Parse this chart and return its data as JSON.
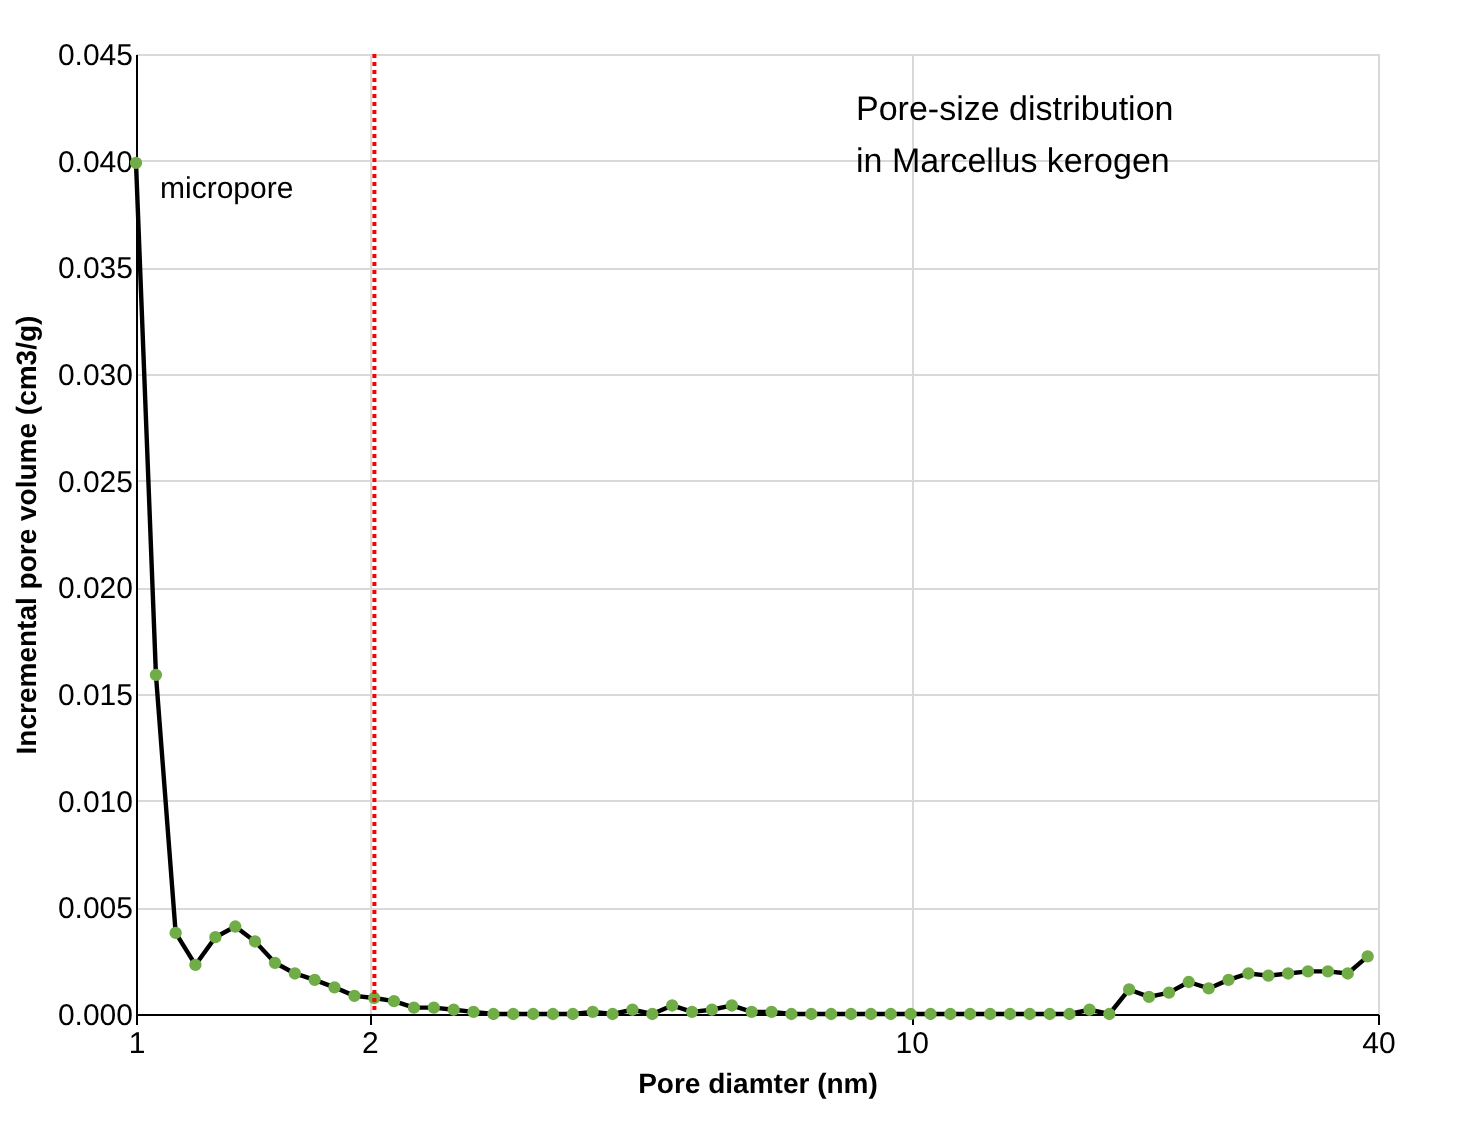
{
  "chart_data": {
    "type": "line",
    "xlabel": "Pore diamter (nm)",
    "ylabel": "Incremental pore volume (cm3/g)",
    "annotations": [
      "micropore",
      "Pore-size distribution\nin Marcellus kerogen"
    ],
    "log": "x",
    "x": [
      1.0,
      1.061,
      1.125,
      1.193,
      1.266,
      1.343,
      1.424,
      1.511,
      1.603,
      1.7,
      1.803,
      1.913,
      2.029,
      2.152,
      2.283,
      2.422,
      2.569,
      2.725,
      2.891,
      3.066,
      3.253,
      3.45,
      3.66,
      3.883,
      4.119,
      4.369,
      4.635,
      4.916,
      5.215,
      5.532,
      5.869,
      6.225,
      6.604,
      7.005,
      7.431,
      7.883,
      8.362,
      8.871,
      9.41,
      9.982,
      10.59,
      11.23,
      11.91,
      12.64,
      13.41,
      14.22,
      15.09,
      16.0,
      16.98,
      18.01,
      19.1,
      20.26,
      21.5,
      22.8,
      24.19,
      25.66,
      27.22,
      28.88,
      30.63,
      32.49,
      34.47,
      36.56,
      38.79
    ],
    "series": [
      {
        "color": "#000000",
        "values": [
          0.0399,
          0.0159,
          0.0038,
          0.0023,
          0.0036,
          0.0041,
          0.0034,
          0.0024,
          0.0019,
          0.0016,
          0.00125,
          0.00085,
          0.00075,
          0.0006,
          0.0003,
          0.0003,
          0.0002,
          0.0001,
          0,
          0,
          0,
          0,
          0,
          0.0001,
          0,
          0.0002,
          0,
          0.0004,
          0.0001,
          0.0002,
          0.0004,
          0.0001,
          0.0001,
          0,
          0,
          0,
          0,
          0,
          0,
          0,
          0,
          0,
          0,
          0,
          0,
          0,
          0,
          0,
          0.0002,
          0,
          0.00115,
          0.0008,
          0.001,
          0.0015,
          0.0012,
          0.0016,
          0.0019,
          0.0018,
          0.0019,
          0.002,
          0.002,
          0.0019,
          0.0027
        ]
      },
      {
        "type": "scatter",
        "color": "#70ad47",
        "marker": "circle",
        "values": [
          0.0399,
          0.0159,
          0.0038,
          0.0023,
          0.0036,
          0.0041,
          0.0034,
          0.0024,
          0.0019,
          0.0016,
          0.00125,
          0.00085,
          0.00075,
          0.0006,
          0.0003,
          0.0003,
          0.0002,
          0.0001,
          0,
          0,
          0,
          0,
          0,
          0.0001,
          0,
          0.0002,
          0,
          0.0004,
          0.0001,
          0.0002,
          0.0004,
          0.0001,
          0.0001,
          0,
          0,
          0,
          0,
          0,
          0,
          0,
          0,
          0,
          0,
          0,
          0,
          0,
          0,
          0,
          0.0002,
          0,
          0.00115,
          0.0008,
          0.001,
          0.0015,
          0.0012,
          0.0016,
          0.0019,
          0.0018,
          0.0019,
          0.002,
          0.002,
          0.0019,
          0.0027
        ]
      }
    ],
    "line_style": "solid",
    "xlim": [
      1,
      40
    ],
    "xticks": [
      1,
      2,
      10,
      40
    ],
    "ylim": [
      0,
      0.045
    ],
    "yticks": [
      {
        "value": 0,
        "label": "0.000"
      },
      {
        "value": 0.005,
        "label": "0.005"
      },
      {
        "value": 0.01,
        "label": "0.010"
      },
      {
        "value": 0.015,
        "label": "0.015"
      },
      {
        "value": 0.02,
        "label": "0.020"
      },
      {
        "value": 0.025,
        "label": "0.025"
      },
      {
        "value": 0.03,
        "label": "0.030"
      },
      {
        "value": 0.035,
        "label": "0.035"
      },
      {
        "value": 0.04,
        "label": "0.040"
      },
      {
        "value": 0.045,
        "label": "0.045"
      }
    ],
    "grid": true,
    "ref_lines": [
      {
        "axis": "x",
        "value": 2.03,
        "color": "#ff0000",
        "line_style": "dotted"
      }
    ]
  }
}
